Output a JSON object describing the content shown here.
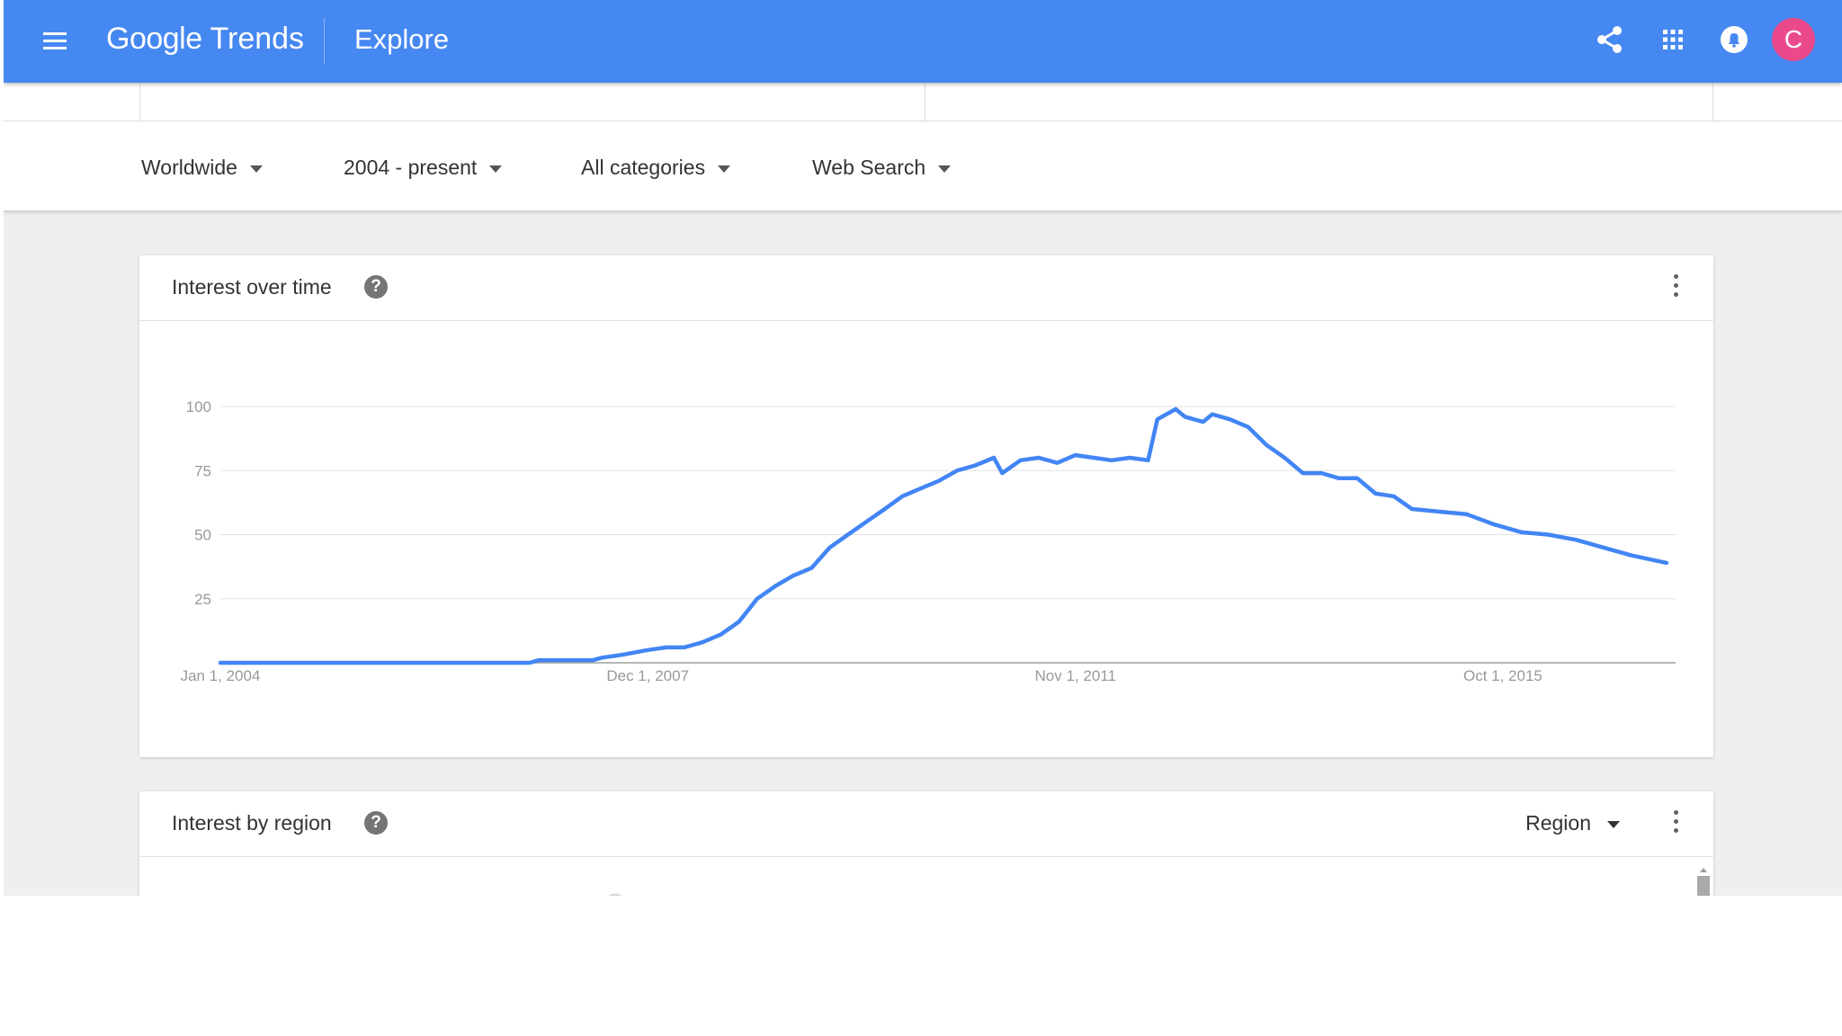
{
  "header": {
    "brand_google": "Google",
    "brand_trends": "Trends",
    "page_title": "Explore",
    "avatar_letter": "C",
    "icons": [
      "menu-icon",
      "share-icon",
      "apps-icon",
      "notifications-icon"
    ],
    "color": "#4688f1"
  },
  "filters": {
    "location": "Worldwide",
    "time_range": "2004 - present",
    "category": "All categories",
    "search_type": "Web Search"
  },
  "interest_over_time": {
    "title": "Interest over time",
    "help_icon": "?"
  },
  "interest_by_region": {
    "title": "Interest by region",
    "help_icon": "?",
    "resolution": "Region"
  },
  "chart_data": {
    "type": "line",
    "title": "Interest over time",
    "xlabel": "",
    "ylabel": "",
    "ylim": [
      0,
      100
    ],
    "yticks": [
      25,
      50,
      75,
      100
    ],
    "xtick_labels": [
      "Jan 1, 2004",
      "Dec 1, 2007",
      "Nov 1, 2011",
      "Oct 1, 2015"
    ],
    "xtick_dates": [
      "2004-01-01",
      "2007-12-01",
      "2011-11-01",
      "2015-10-01"
    ],
    "x_range": [
      "2004-01-01",
      "2017-05-01"
    ],
    "grid": true,
    "series_color": "#4285f4",
    "series": [
      {
        "values": [
          {
            "x": "2004-01-01",
            "y": 0
          },
          {
            "x": "2006-01-01",
            "y": 0
          },
          {
            "x": "2006-11-01",
            "y": 0
          },
          {
            "x": "2006-12-01",
            "y": 1
          },
          {
            "x": "2007-06-01",
            "y": 1
          },
          {
            "x": "2007-07-01",
            "y": 2
          },
          {
            "x": "2007-09-01",
            "y": 3
          },
          {
            "x": "2007-12-01",
            "y": 5
          },
          {
            "x": "2008-02-01",
            "y": 6
          },
          {
            "x": "2008-04-01",
            "y": 6
          },
          {
            "x": "2008-06-01",
            "y": 8
          },
          {
            "x": "2008-08-01",
            "y": 11
          },
          {
            "x": "2008-10-01",
            "y": 16
          },
          {
            "x": "2008-12-01",
            "y": 25
          },
          {
            "x": "2009-02-01",
            "y": 30
          },
          {
            "x": "2009-04-01",
            "y": 34
          },
          {
            "x": "2009-06-01",
            "y": 37
          },
          {
            "x": "2009-08-01",
            "y": 45
          },
          {
            "x": "2009-10-01",
            "y": 50
          },
          {
            "x": "2009-12-01",
            "y": 55
          },
          {
            "x": "2010-02-01",
            "y": 60
          },
          {
            "x": "2010-04-01",
            "y": 65
          },
          {
            "x": "2010-06-01",
            "y": 68
          },
          {
            "x": "2010-08-01",
            "y": 71
          },
          {
            "x": "2010-10-01",
            "y": 75
          },
          {
            "x": "2010-12-01",
            "y": 77
          },
          {
            "x": "2011-02-01",
            "y": 80
          },
          {
            "x": "2011-03-01",
            "y": 74
          },
          {
            "x": "2011-05-01",
            "y": 79
          },
          {
            "x": "2011-07-01",
            "y": 80
          },
          {
            "x": "2011-09-01",
            "y": 78
          },
          {
            "x": "2011-11-01",
            "y": 81
          },
          {
            "x": "2012-01-01",
            "y": 80
          },
          {
            "x": "2012-03-01",
            "y": 79
          },
          {
            "x": "2012-05-01",
            "y": 80
          },
          {
            "x": "2012-07-01",
            "y": 79
          },
          {
            "x": "2012-08-01",
            "y": 95
          },
          {
            "x": "2012-10-01",
            "y": 99
          },
          {
            "x": "2012-11-01",
            "y": 96
          },
          {
            "x": "2013-01-01",
            "y": 94
          },
          {
            "x": "2013-02-01",
            "y": 97
          },
          {
            "x": "2013-04-01",
            "y": 95
          },
          {
            "x": "2013-06-01",
            "y": 92
          },
          {
            "x": "2013-08-01",
            "y": 85
          },
          {
            "x": "2013-10-01",
            "y": 80
          },
          {
            "x": "2013-12-01",
            "y": 74
          },
          {
            "x": "2014-02-01",
            "y": 74
          },
          {
            "x": "2014-04-01",
            "y": 72
          },
          {
            "x": "2014-06-01",
            "y": 72
          },
          {
            "x": "2014-08-01",
            "y": 66
          },
          {
            "x": "2014-10-01",
            "y": 65
          },
          {
            "x": "2014-12-01",
            "y": 60
          },
          {
            "x": "2015-03-01",
            "y": 59
          },
          {
            "x": "2015-06-01",
            "y": 58
          },
          {
            "x": "2015-09-01",
            "y": 54
          },
          {
            "x": "2015-12-01",
            "y": 51
          },
          {
            "x": "2016-03-01",
            "y": 50
          },
          {
            "x": "2016-06-01",
            "y": 48
          },
          {
            "x": "2016-09-01",
            "y": 45
          },
          {
            "x": "2016-12-01",
            "y": 42
          },
          {
            "x": "2017-04-01",
            "y": 39
          }
        ]
      }
    ]
  }
}
